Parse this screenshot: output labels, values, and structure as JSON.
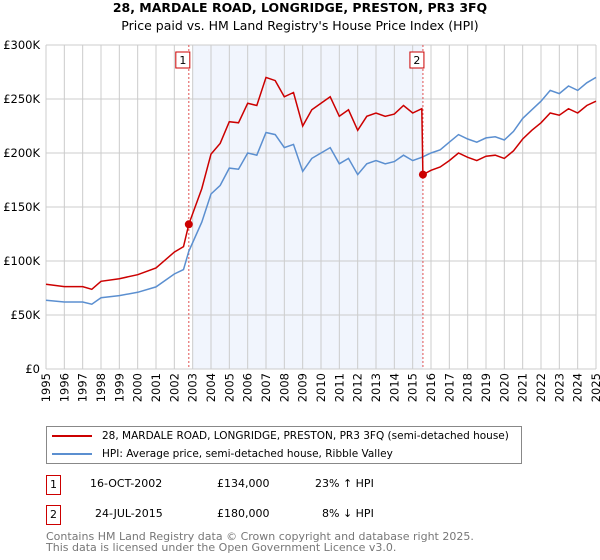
{
  "title": "28, MARDALE ROAD, LONGRIDGE, PRESTON, PR3 3FQ",
  "subtitle": "Price paid vs. HM Land Registry's House Price Index (HPI)",
  "chart_data": {
    "type": "line",
    "xlim": [
      1995,
      2025
    ],
    "ylim": [
      0,
      300000
    ],
    "x_ticks": [
      "1995",
      "1996",
      "1997",
      "1998",
      "1999",
      "2000",
      "2001",
      "2002",
      "2003",
      "2004",
      "2005",
      "2006",
      "2007",
      "2008",
      "2009",
      "2010",
      "2011",
      "2012",
      "2013",
      "2014",
      "2015",
      "2016",
      "2017",
      "2018",
      "2019",
      "2020",
      "2021",
      "2022",
      "2023",
      "2024",
      "2025"
    ],
    "y_ticks": [
      {
        "v": 0,
        "l": "£0"
      },
      {
        "v": 50000,
        "l": "£50K"
      },
      {
        "v": 100000,
        "l": "£100K"
      },
      {
        "v": 150000,
        "l": "£150K"
      },
      {
        "v": 200000,
        "l": "£200K"
      },
      {
        "v": 250000,
        "l": "£250K"
      },
      {
        "v": 300000,
        "l": "£300K"
      }
    ],
    "grid": true,
    "series": [
      {
        "name": "28, MARDALE ROAD, LONGRIDGE, PRESTON, PR3 3FQ (semi-detached house)",
        "color": "#cc0000",
        "x": [
          1995,
          1996,
          1997,
          1997.5,
          1998,
          1999,
          2000,
          2001,
          2002,
          2002.5,
          2002.79,
          2003.5,
          2004,
          2004.5,
          2005,
          2005.5,
          2006,
          2006.5,
          2007,
          2007.5,
          2008,
          2008.5,
          2009,
          2009.5,
          2010,
          2010.5,
          2011,
          2011.5,
          2012,
          2012.5,
          2013,
          2013.5,
          2014,
          2014.5,
          2015,
          2015.5,
          2015.56,
          2016,
          2016.5,
          2017,
          2017.5,
          2018,
          2018.5,
          2019,
          2019.5,
          2020,
          2020.5,
          2021,
          2021.5,
          2022,
          2022.5,
          2023,
          2023.5,
          2024,
          2024.5,
          2025
        ],
        "y": [
          78400,
          76300,
          76300,
          73800,
          81200,
          83600,
          87300,
          93500,
          108200,
          113200,
          134000,
          167000,
          199000,
          209000,
          229000,
          228000,
          246000,
          244000,
          270000,
          267000,
          252000,
          256000,
          225000,
          240000,
          246000,
          252000,
          234000,
          240000,
          221000,
          234000,
          237000,
          234000,
          236000,
          244000,
          237000,
          241000,
          180000,
          184000,
          187000,
          193000,
          200000,
          196000,
          193000,
          197000,
          198000,
          195000,
          202000,
          213000,
          221000,
          228000,
          237000,
          235000,
          241000,
          237000,
          244000,
          248000
        ]
      },
      {
        "name": "HPI: Average price, semi-detached house, Ribble Valley",
        "color": "#5b8fd0",
        "x": [
          1995,
          1996,
          1997,
          1997.5,
          1998,
          1999,
          2000,
          2001,
          2002,
          2002.5,
          2002.79,
          2003.5,
          2004,
          2004.5,
          2005,
          2005.5,
          2006,
          2006.5,
          2007,
          2007.5,
          2008,
          2008.5,
          2009,
          2009.5,
          2010,
          2010.5,
          2011,
          2011.5,
          2012,
          2012.5,
          2013,
          2013.5,
          2014,
          2014.5,
          2015,
          2015.5,
          2016,
          2016.5,
          2017,
          2017.5,
          2018,
          2018.5,
          2019,
          2019.5,
          2020,
          2020.5,
          2021,
          2021.5,
          2022,
          2022.5,
          2023,
          2023.5,
          2024,
          2024.5,
          2025
        ],
        "y": [
          63700,
          62000,
          62000,
          60000,
          66000,
          68000,
          71000,
          76000,
          88000,
          92000,
          109000,
          136000,
          162000,
          170000,
          186000,
          185000,
          200000,
          198000,
          219000,
          217000,
          205000,
          208000,
          183000,
          195000,
          200000,
          205000,
          190000,
          195000,
          180000,
          190000,
          193000,
          190000,
          192000,
          198000,
          193000,
          196000,
          200000,
          203000,
          210000,
          217000,
          213000,
          210000,
          214000,
          215000,
          212000,
          220000,
          232000,
          240000,
          248000,
          258000,
          255000,
          262000,
          258000,
          265000,
          270000
        ]
      }
    ],
    "sales": [
      {
        "n": "1",
        "x": 2002.79,
        "y": 134000
      },
      {
        "n": "2",
        "x": 2015.56,
        "y": 180000
      }
    ]
  },
  "legend": {
    "red": "28, MARDALE ROAD, LONGRIDGE, PRESTON, PR3 3FQ (semi-detached house)",
    "blue": "HPI: Average price, semi-detached house, Ribble Valley"
  },
  "transactions": [
    {
      "n": "1",
      "date": "16-OCT-2002",
      "price": "£134,000",
      "hpi": "23% ↑ HPI"
    },
    {
      "n": "2",
      "date": "24-JUL-2015",
      "price": "£180,000",
      "hpi": "8% ↓ HPI"
    }
  ],
  "footer": [
    "Contains HM Land Registry data © Crown copyright and database right 2025.",
    "This data is licensed under the Open Government Licence v3.0."
  ]
}
